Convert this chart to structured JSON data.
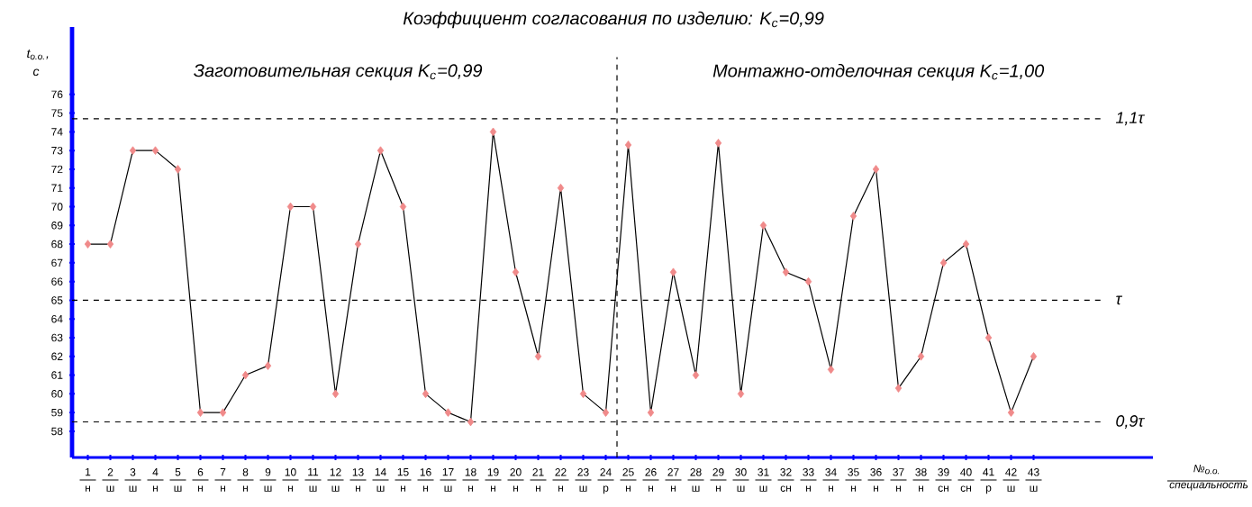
{
  "chart_data": {
    "type": "line",
    "title": "Коэффициент согласования по изделию: K$_{с}$=0,99",
    "xlabel": "№$_{о.о.}$ специальность",
    "ylabel": "t$_{о.о.}$, с",
    "annotations": [
      "Заготовительная секция K$_{с}$=0,99",
      "Монтажно-отделочная секция K$_{с}$=1,00"
    ],
    "x": [
      1,
      2,
      3,
      4,
      5,
      6,
      7,
      8,
      9,
      10,
      11,
      12,
      13,
      14,
      15,
      16,
      17,
      18,
      19,
      20,
      21,
      22,
      23,
      24,
      25,
      26,
      27,
      28,
      29,
      30,
      31,
      32,
      33,
      34,
      35,
      36,
      37,
      38,
      39,
      40,
      41,
      42,
      43
    ],
    "series": [
      {
        "color": "#000000",
        "colors": [
          "#f08a8a",
          "#f08a8a",
          "#f08a8a",
          "#f08a8a",
          "#f08a8a",
          "#f08a8a",
          "#f08a8a",
          "#f08a8a",
          "#f08a8a",
          "#f08a8a",
          "#f08a8a",
          "#f08a8a",
          "#f08a8a",
          "#f08a8a",
          "#f08a8a",
          "#f08a8a",
          "#f08a8a",
          "#f08a8a",
          "#f08a8a",
          "#f08a8a",
          "#f08a8a",
          "#f08a8a",
          "#f08a8a",
          "#f08a8a",
          "#f08a8a",
          "#f08a8a",
          "#f08a8a",
          "#f08a8a",
          "#f08a8a",
          "#f08a8a",
          "#f08a8a",
          "#f08a8a",
          "#f08a8a",
          "#f08a8a",
          "#f08a8a",
          "#f08a8a",
          "#f08a8a",
          "#f08a8a",
          "#f08a8a",
          "#f08a8a",
          "#f08a8a",
          "#f08a8a",
          "#f08a8a"
        ],
        "values": [
          68,
          68,
          73,
          73,
          72,
          59,
          59,
          61,
          61.5,
          70,
          70,
          60,
          68,
          73,
          70,
          60,
          59,
          58.5,
          74,
          66.5,
          62,
          71,
          60,
          59,
          73.3,
          59,
          66.5,
          61,
          73.4,
          60,
          69,
          66.5,
          66,
          61.3,
          69.5,
          72,
          60.3,
          62,
          67,
          68,
          63,
          59,
          62
        ]
      }
    ],
    "xlim": [
      0.3,
      48.3
    ],
    "ylim": [
      56.6,
      79.6
    ],
    "xticks": [
      {
        "value": 1,
        "label": "1 н"
      },
      {
        "value": 2,
        "label": "2 ш"
      },
      {
        "value": 3,
        "label": "3 ш"
      },
      {
        "value": 4,
        "label": "4 н"
      },
      {
        "value": 5,
        "label": "5 ш"
      },
      {
        "value": 6,
        "label": "6 н"
      },
      {
        "value": 7,
        "label": "7 н"
      },
      {
        "value": 8,
        "label": "8 н"
      },
      {
        "value": 9,
        "label": "9 ш"
      },
      {
        "value": 10,
        "label": "10 н"
      },
      {
        "value": 11,
        "label": "11 ш"
      },
      {
        "value": 12,
        "label": "12 ш"
      },
      {
        "value": 13,
        "label": "13 н"
      },
      {
        "value": 14,
        "label": "14 ш"
      },
      {
        "value": 15,
        "label": "15 н"
      },
      {
        "value": 16,
        "label": "16 н"
      },
      {
        "value": 17,
        "label": "17 ш"
      },
      {
        "value": 18,
        "label": "18 н"
      },
      {
        "value": 19,
        "label": "19 н"
      },
      {
        "value": 20,
        "label": "20 н"
      },
      {
        "value": 21,
        "label": "21 н"
      },
      {
        "value": 22,
        "label": "22 н"
      },
      {
        "value": 23,
        "label": "23 ш"
      },
      {
        "value": 24,
        "label": "24 р"
      },
      {
        "value": 25,
        "label": "25 н"
      },
      {
        "value": 26,
        "label": "26 н"
      },
      {
        "value": 27,
        "label": "27 н"
      },
      {
        "value": 28,
        "label": "28 ш"
      },
      {
        "value": 29,
        "label": "29 н"
      },
      {
        "value": 30,
        "label": "30 ш"
      },
      {
        "value": 31,
        "label": "31 ш"
      },
      {
        "value": 32,
        "label": "32 сн"
      },
      {
        "value": 33,
        "label": "33 н"
      },
      {
        "value": 34,
        "label": "34 н"
      },
      {
        "value": 35,
        "label": "35 н"
      },
      {
        "value": 36,
        "label": "36 н"
      },
      {
        "value": 37,
        "label": "37 н"
      },
      {
        "value": 38,
        "label": "38 н"
      },
      {
        "value": 39,
        "label": "39 сн"
      },
      {
        "value": 40,
        "label": "40 сн"
      },
      {
        "value": 41,
        "label": "41 р"
      },
      {
        "value": 42,
        "label": "42 ш"
      },
      {
        "value": 43,
        "label": "43 ш"
      }
    ],
    "yticks": [
      58,
      59,
      60,
      61,
      62,
      63,
      64,
      65,
      66,
      67,
      68,
      69,
      70,
      71,
      72,
      73,
      74,
      75,
      76
    ],
    "ref_lines": [
      {
        "axis": "y",
        "value": 74.7,
        "label": "1,1τ",
        "line_style": "dashed"
      },
      {
        "axis": "y",
        "value": 65,
        "label": "τ",
        "line_style": "dashed"
      },
      {
        "axis": "y",
        "value": 58.5,
        "label": "0,9τ",
        "line_style": "dashed"
      },
      {
        "axis": "x",
        "value": 24.5,
        "line_style": "dashed"
      }
    ],
    "grid": false,
    "marker": "diamond",
    "line_style": "solid"
  }
}
